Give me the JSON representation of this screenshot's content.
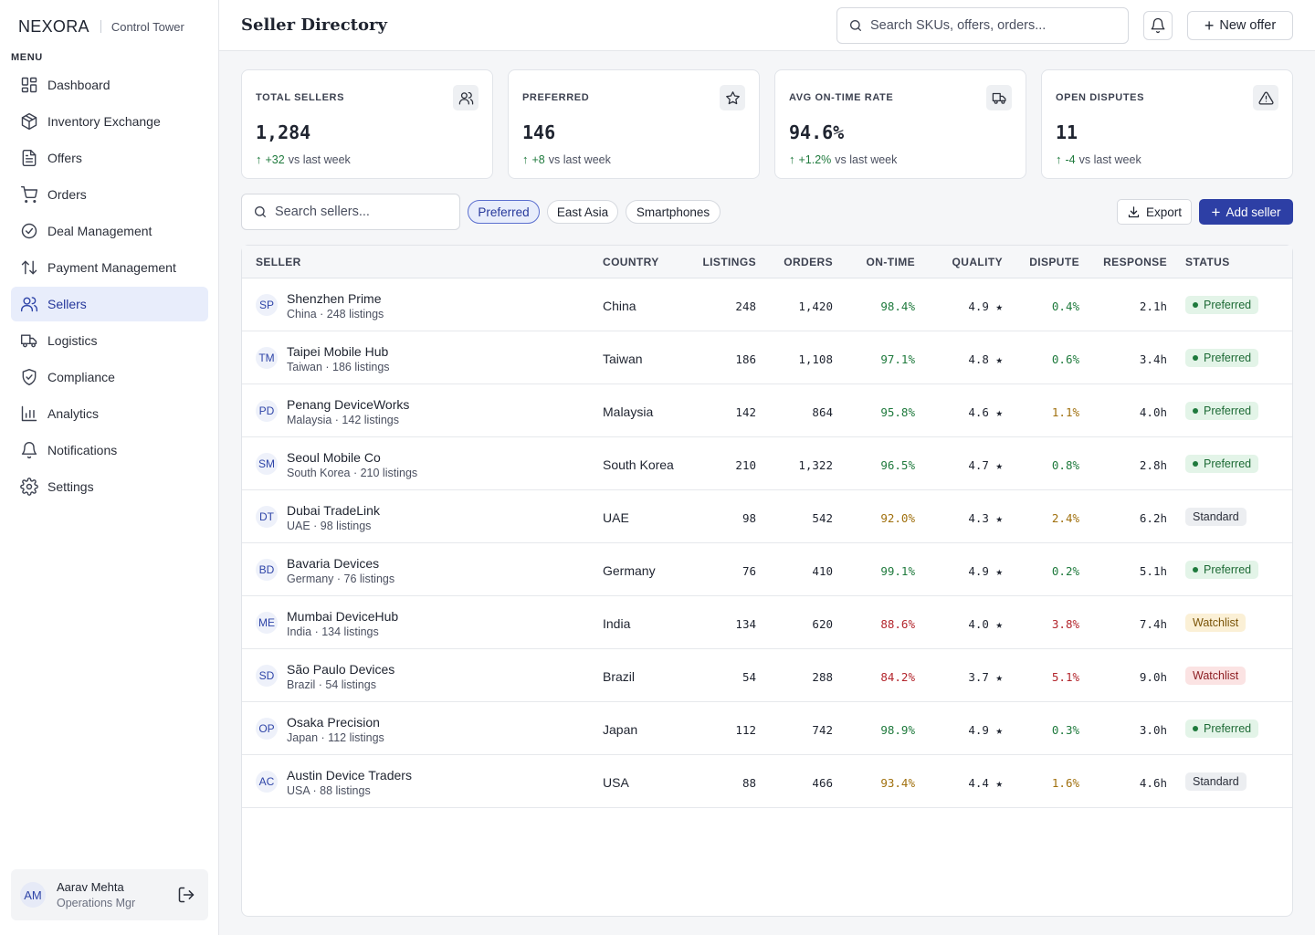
{
  "brand": {
    "logo": "NEXORA",
    "subtitle": "Control Tower"
  },
  "sidebar": {
    "menu_title": "MENU",
    "items": [
      {
        "label": "Dashboard",
        "icon": "dashboard-icon"
      },
      {
        "label": "Inventory Exchange",
        "icon": "box-icon"
      },
      {
        "label": "Offers",
        "icon": "document-icon"
      },
      {
        "label": "Orders",
        "icon": "cart-icon"
      },
      {
        "label": "Deal Management",
        "icon": "check-circle-icon"
      },
      {
        "label": "Payment Management",
        "icon": "transfer-arrows-icon"
      },
      {
        "label": "Sellers",
        "icon": "users-icon",
        "active": true
      },
      {
        "label": "Logistics",
        "icon": "truck-icon"
      },
      {
        "label": "Compliance",
        "icon": "shield-check-icon"
      },
      {
        "label": "Analytics",
        "icon": "bar-chart-icon"
      },
      {
        "label": "Notifications",
        "icon": "bell-icon"
      },
      {
        "label": "Settings",
        "icon": "gear-icon"
      }
    ],
    "user": {
      "initials": "AM",
      "name": "Aarav Mehta",
      "role": "Operations Mgr"
    }
  },
  "header": {
    "title": "Seller Directory",
    "search_placeholder": "Search SKUs, offers, orders...",
    "new_offer_label": "New offer"
  },
  "stats": [
    {
      "label": "TOTAL SELLERS",
      "value": "1,284",
      "delta": "+32",
      "delta_text": "vs last week",
      "icon": "users-icon"
    },
    {
      "label": "PREFERRED",
      "value": "146",
      "delta": "+8",
      "delta_text": "vs last week",
      "icon": "star-icon"
    },
    {
      "label": "AVG ON-TIME RATE",
      "value": "94.6%",
      "delta": "+1.2%",
      "delta_text": "vs last week",
      "icon": "truck-icon"
    },
    {
      "label": "OPEN DISPUTES",
      "value": "11",
      "delta": "-4",
      "delta_text": "vs last week",
      "icon": "alert-triangle-icon"
    }
  ],
  "toolbar": {
    "search_placeholder": "Search sellers...",
    "filters": [
      {
        "label": "Preferred",
        "active": true
      },
      {
        "label": "East Asia",
        "active": false
      },
      {
        "label": "Smartphones",
        "active": false
      }
    ],
    "export_label": "Export",
    "add_label": "Add seller"
  },
  "table": {
    "columns": [
      "SELLER",
      "COUNTRY",
      "LISTINGS",
      "ORDERS",
      "ON-TIME",
      "QUALITY",
      "DISPUTE",
      "RESPONSE",
      "STATUS"
    ],
    "rows": [
      {
        "initials": "SP",
        "name": "Shenzhen Prime",
        "sub": "China · 248 listings",
        "country": "China",
        "listings": "248",
        "orders": "1,420",
        "ontime": "98.4%",
        "ontime_tone": "good",
        "quality": "4.9 ★",
        "dispute": "0.4%",
        "dispute_tone": "good",
        "response": "2.1h",
        "status": "Preferred",
        "status_tone": "preferred"
      },
      {
        "initials": "TM",
        "name": "Taipei Mobile Hub",
        "sub": "Taiwan · 186 listings",
        "country": "Taiwan",
        "listings": "186",
        "orders": "1,108",
        "ontime": "97.1%",
        "ontime_tone": "good",
        "quality": "4.8 ★",
        "dispute": "0.6%",
        "dispute_tone": "good",
        "response": "3.4h",
        "status": "Preferred",
        "status_tone": "preferred"
      },
      {
        "initials": "PD",
        "name": "Penang DeviceWorks",
        "sub": "Malaysia · 142 listings",
        "country": "Malaysia",
        "listings": "142",
        "orders": "864",
        "ontime": "95.8%",
        "ontime_tone": "good",
        "quality": "4.6 ★",
        "dispute": "1.1%",
        "dispute_tone": "warn",
        "response": "4.0h",
        "status": "Preferred",
        "status_tone": "preferred"
      },
      {
        "initials": "SM",
        "name": "Seoul Mobile Co",
        "sub": "South Korea · 210 listings",
        "country": "South Korea",
        "listings": "210",
        "orders": "1,322",
        "ontime": "96.5%",
        "ontime_tone": "good",
        "quality": "4.7 ★",
        "dispute": "0.8%",
        "dispute_tone": "good",
        "response": "2.8h",
        "status": "Preferred",
        "status_tone": "preferred"
      },
      {
        "initials": "DT",
        "name": "Dubai TradeLink",
        "sub": "UAE · 98 listings",
        "country": "UAE",
        "listings": "98",
        "orders": "542",
        "ontime": "92.0%",
        "ontime_tone": "warn",
        "quality": "4.3 ★",
        "dispute": "2.4%",
        "dispute_tone": "warn",
        "response": "6.2h",
        "status": "Standard",
        "status_tone": "standard"
      },
      {
        "initials": "BD",
        "name": "Bavaria Devices",
        "sub": "Germany · 76 listings",
        "country": "Germany",
        "listings": "76",
        "orders": "410",
        "ontime": "99.1%",
        "ontime_tone": "good",
        "quality": "4.9 ★",
        "dispute": "0.2%",
        "dispute_tone": "good",
        "response": "5.1h",
        "status": "Preferred",
        "status_tone": "preferred"
      },
      {
        "initials": "ME",
        "name": "Mumbai DeviceHub",
        "sub": "India · 134 listings",
        "country": "India",
        "listings": "134",
        "orders": "620",
        "ontime": "88.6%",
        "ontime_tone": "bad",
        "quality": "4.0 ★",
        "dispute": "3.8%",
        "dispute_tone": "bad",
        "response": "7.4h",
        "status": "Watchlist",
        "status_tone": "watchlist-warn"
      },
      {
        "initials": "SD",
        "name": "São Paulo Devices",
        "sub": "Brazil · 54 listings",
        "country": "Brazil",
        "listings": "54",
        "orders": "288",
        "ontime": "84.2%",
        "ontime_tone": "bad",
        "quality": "3.7 ★",
        "dispute": "5.1%",
        "dispute_tone": "bad",
        "response": "9.0h",
        "status": "Watchlist",
        "status_tone": "watchlist-bad"
      },
      {
        "initials": "OP",
        "name": "Osaka Precision",
        "sub": "Japan · 112 listings",
        "country": "Japan",
        "listings": "112",
        "orders": "742",
        "ontime": "98.9%",
        "ontime_tone": "good",
        "quality": "4.9 ★",
        "dispute": "0.3%",
        "dispute_tone": "good",
        "response": "3.0h",
        "status": "Preferred",
        "status_tone": "preferred"
      },
      {
        "initials": "AC",
        "name": "Austin Device Traders",
        "sub": "USA · 88 listings",
        "country": "USA",
        "listings": "88",
        "orders": "466",
        "ontime": "93.4%",
        "ontime_tone": "warn",
        "quality": "4.4 ★",
        "dispute": "1.6%",
        "dispute_tone": "warn",
        "response": "4.6h",
        "status": "Standard",
        "status_tone": "standard"
      }
    ]
  }
}
